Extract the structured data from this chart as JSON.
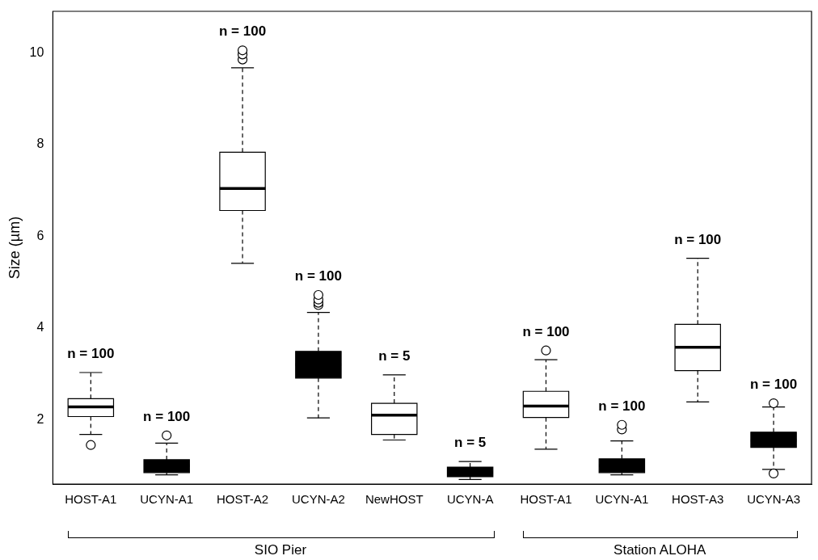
{
  "chart_data": {
    "type": "box",
    "ylabel": "Size (µm)",
    "categories": [
      "HOST-A1",
      "UCYN-A1",
      "HOST-A2",
      "UCYN-A2",
      "NewHOST",
      "UCYN-A",
      "HOST-A1",
      "UCYN-A1",
      "HOST-A3",
      "UCYN-A3"
    ],
    "colors": [
      "#ffffff",
      "#000000",
      "#ffffff",
      "#000000",
      "#ffffff",
      "#000000",
      "#ffffff",
      "#000000",
      "#ffffff",
      "#000000"
    ],
    "boxes": [
      {
        "low": 1.68,
        "q1": 2.07,
        "median": 2.28,
        "q3": 2.46,
        "high": 3.03,
        "outliers": [
          1.45
        ]
      },
      {
        "low": 0.8,
        "q1": 0.85,
        "median": 1.0,
        "q3": 1.13,
        "high": 1.49,
        "outliers": [
          1.66
        ]
      },
      {
        "low": 5.41,
        "q1": 6.56,
        "median": 7.04,
        "q3": 7.83,
        "high": 9.67,
        "outliers": [
          9.85,
          9.96,
          10.05
        ]
      },
      {
        "low": 2.04,
        "q1": 2.91,
        "median": 3.2,
        "q3": 3.49,
        "high": 4.34,
        "outliers": [
          4.5,
          4.55,
          4.62,
          4.72
        ]
      },
      {
        "low": 1.56,
        "q1": 1.68,
        "median": 2.1,
        "q3": 2.36,
        "high": 2.98
      },
      {
        "low": 0.7,
        "q1": 0.76,
        "median": 0.85,
        "q3": 0.97,
        "high": 1.09
      },
      {
        "low": 1.36,
        "q1": 2.05,
        "median": 2.3,
        "q3": 2.62,
        "high": 3.31,
        "outliers": [
          3.51
        ]
      },
      {
        "low": 0.8,
        "q1": 0.85,
        "median": 1.0,
        "q3": 1.15,
        "high": 1.54,
        "outliers": [
          1.79,
          1.89
        ]
      },
      {
        "low": 2.39,
        "q1": 3.07,
        "median": 3.58,
        "q3": 4.08,
        "high": 5.52
      },
      {
        "low": 0.92,
        "q1": 1.4,
        "median": 1.55,
        "q3": 1.73,
        "high": 2.28,
        "outliers": [
          0.83,
          2.36
        ]
      }
    ],
    "value_labels": [
      "n = 100",
      "n = 100",
      "n = 100",
      "n = 100",
      "n = 5",
      "n = 5",
      "n = 100",
      "n = 100",
      "n = 100",
      "n = 100"
    ],
    "ylim": [
      0.6,
      10.9
    ],
    "yticks": [
      2,
      4,
      6,
      8,
      10
    ],
    "grid": false,
    "legend": false,
    "annotations": [
      "SIO Pier",
      "Station ALOHA"
    ]
  }
}
